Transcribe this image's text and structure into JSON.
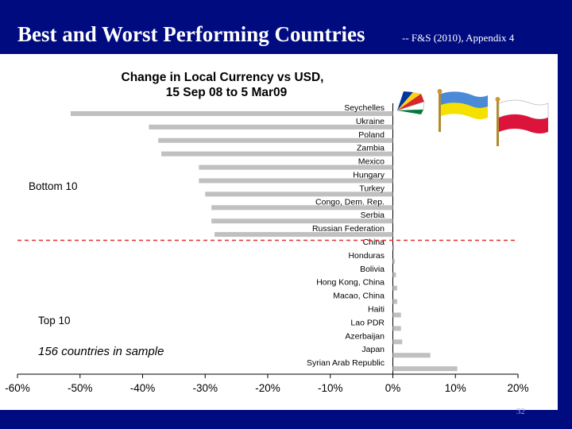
{
  "slide": {
    "title": "Best and Worst Performing Countries",
    "subtitle": "-- F&S (2010), Appendix 4",
    "page_number": "32"
  },
  "chart_data": {
    "type": "bar",
    "orientation": "horizontal",
    "title_line1": "Change in Local Currency vs USD,",
    "title_line2": "15 Sep 08 to 5 Mar09",
    "categories": [
      "Seychelles",
      "Ukraine",
      "Poland",
      "Zambia",
      "Mexico",
      "Hungary",
      "Turkey",
      "Congo, Dem. Rep.",
      "Serbia",
      "Russian Federation",
      "China",
      "Honduras",
      "Bolivia",
      "Hong Kong, China",
      "Macao, China",
      "Haiti",
      "Lao PDR",
      "Azerbaijan",
      "Japan",
      "Syrian Arab Republic"
    ],
    "values": [
      -51.5,
      -39,
      -37.5,
      -37,
      -31,
      -31,
      -30,
      -29,
      -29,
      -28.5,
      0.2,
      0.3,
      0.5,
      0.7,
      0.7,
      1.3,
      1.3,
      1.5,
      6,
      10.3
    ],
    "xlim": [
      -60,
      20
    ],
    "xticks": [
      -60,
      -50,
      -40,
      -30,
      -20,
      -10,
      0,
      10,
      20
    ],
    "xtick_labels": [
      "-60%",
      "-50%",
      "-40%",
      "-30%",
      "-20%",
      "-10%",
      "0%",
      "10%",
      "20%"
    ],
    "bar_color": "#c0c0c0",
    "annotations": {
      "bottom_group": "Bottom 10",
      "top_group": "Top 10",
      "sample_note": "156 countries in sample"
    },
    "divider_color": "#e03030",
    "flags": [
      "seychelles-flag",
      "ukraine-flag",
      "poland-flag"
    ]
  }
}
